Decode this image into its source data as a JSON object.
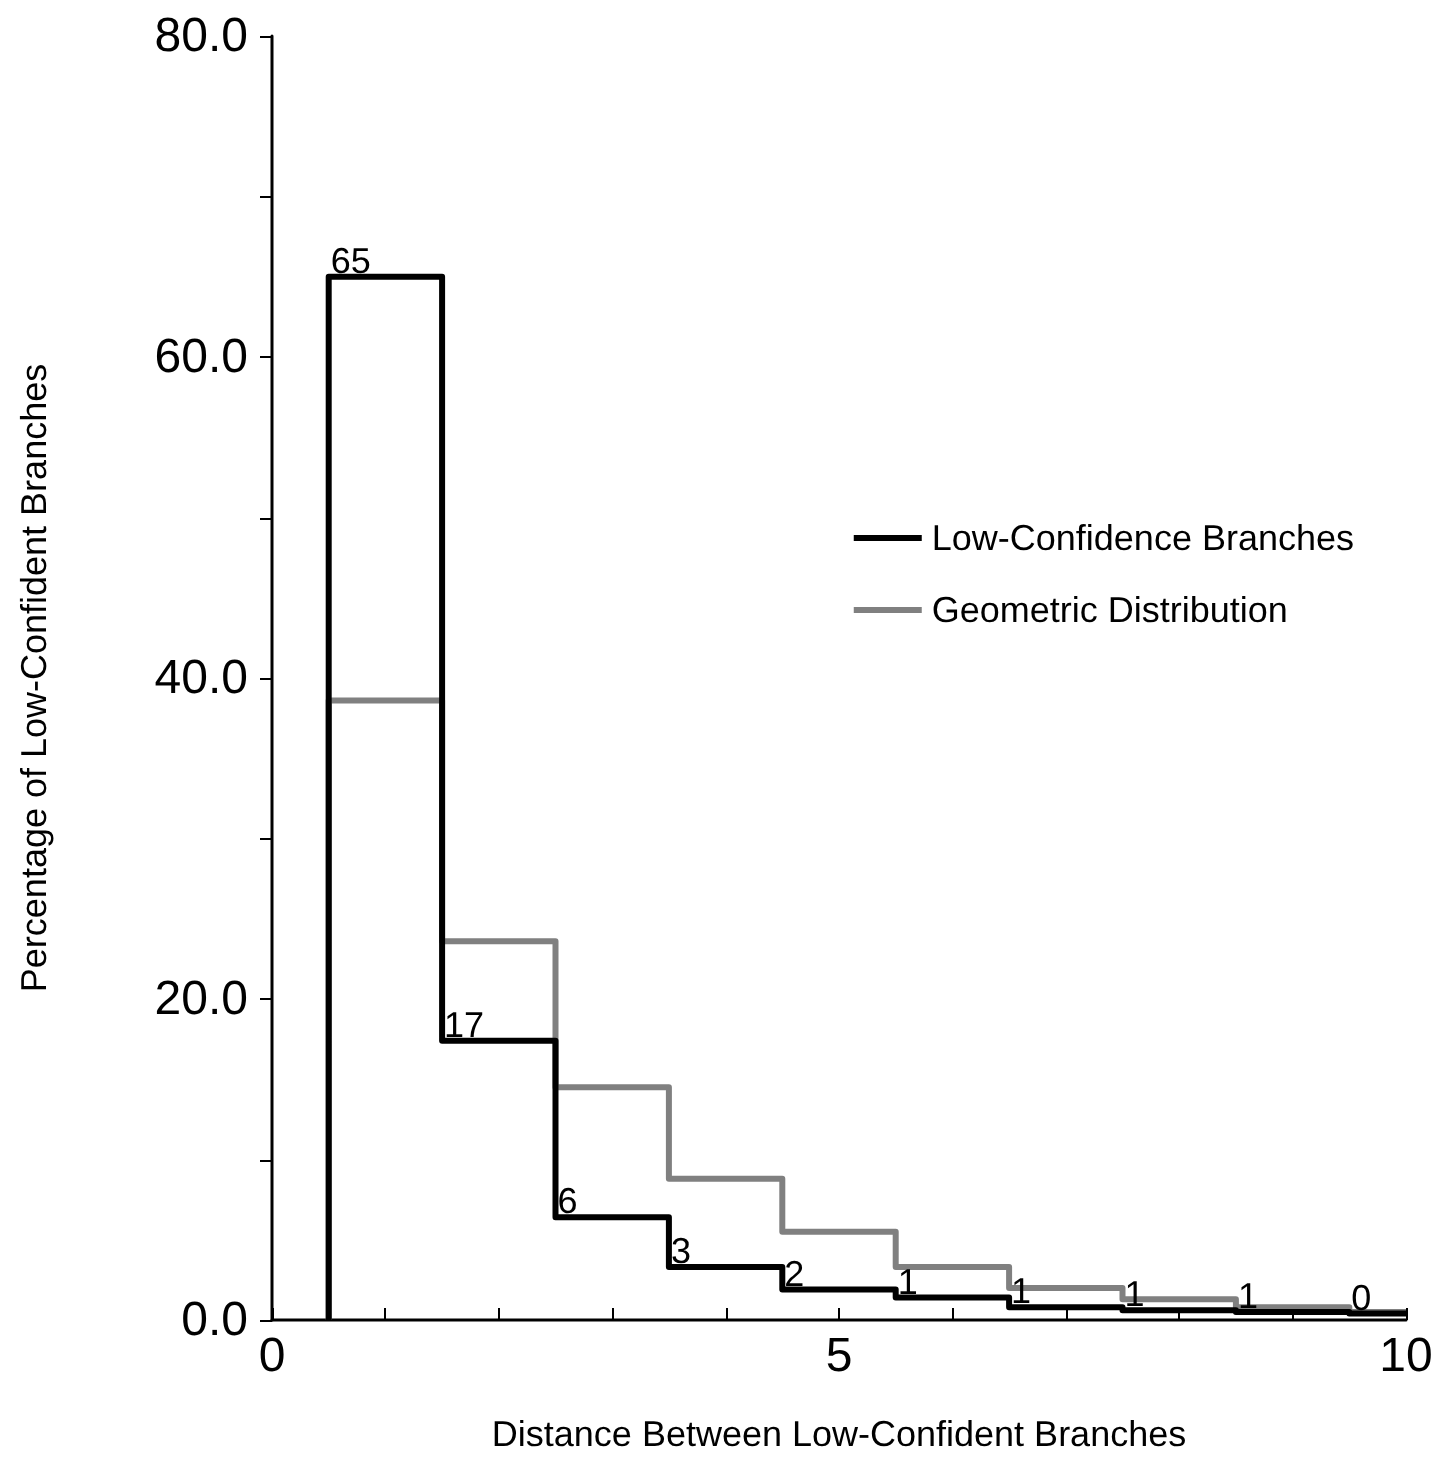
{
  "chart_data": {
    "type": "step",
    "xlabel": "Distance Between Low-Confident Branches",
    "ylabel": "Percentage of Low-Confident Branches",
    "x": [
      0.5,
      0.5,
      1.5,
      2.5,
      3.5,
      4.5,
      5.5,
      6.5,
      7.5,
      8.5,
      9.5,
      10
    ],
    "series": [
      {
        "name": "Low-Confidence Branches",
        "color": "#000000",
        "values": [
          0,
          65,
          17.4,
          6.4,
          3.3,
          1.9,
          1.4,
          0.8,
          0.6,
          0.5,
          0.4,
          0.4
        ],
        "value_labels": [
          null,
          "65",
          "17",
          "6",
          "3",
          "2",
          "1",
          "1",
          "1",
          "1",
          "0",
          null
        ]
      },
      {
        "name": "Geometric Distribution",
        "color": "#808080",
        "values": [
          0,
          38.6,
          23.6,
          14.5,
          8.8,
          5.5,
          3.3,
          2.0,
          1.3,
          0.8,
          0.5,
          0.5
        ]
      }
    ],
    "xlim": [
      0,
      10
    ],
    "xticks": [
      0,
      {
        "value": 1,
        "label": null
      },
      {
        "value": 2,
        "label": null
      },
      {
        "value": 3,
        "label": null
      },
      {
        "value": 4,
        "label": null
      },
      5,
      {
        "value": 6,
        "label": null
      },
      {
        "value": 7,
        "label": null
      },
      {
        "value": 8,
        "label": null
      },
      {
        "value": 9,
        "label": null
      },
      10
    ],
    "ylim": [
      0,
      80
    ],
    "yticks": [
      {
        "value": 0,
        "label": "0.0"
      },
      {
        "value": 10,
        "label": null
      },
      {
        "value": 20,
        "label": "20.0"
      },
      {
        "value": 30,
        "label": null
      },
      {
        "value": 40,
        "label": "40.0"
      },
      {
        "value": 50,
        "label": null
      },
      {
        "value": 60,
        "label": "60.0"
      },
      {
        "value": 70,
        "label": null
      },
      {
        "value": 80,
        "label": "80.0"
      }
    ],
    "legend": "right",
    "grid": false
  }
}
